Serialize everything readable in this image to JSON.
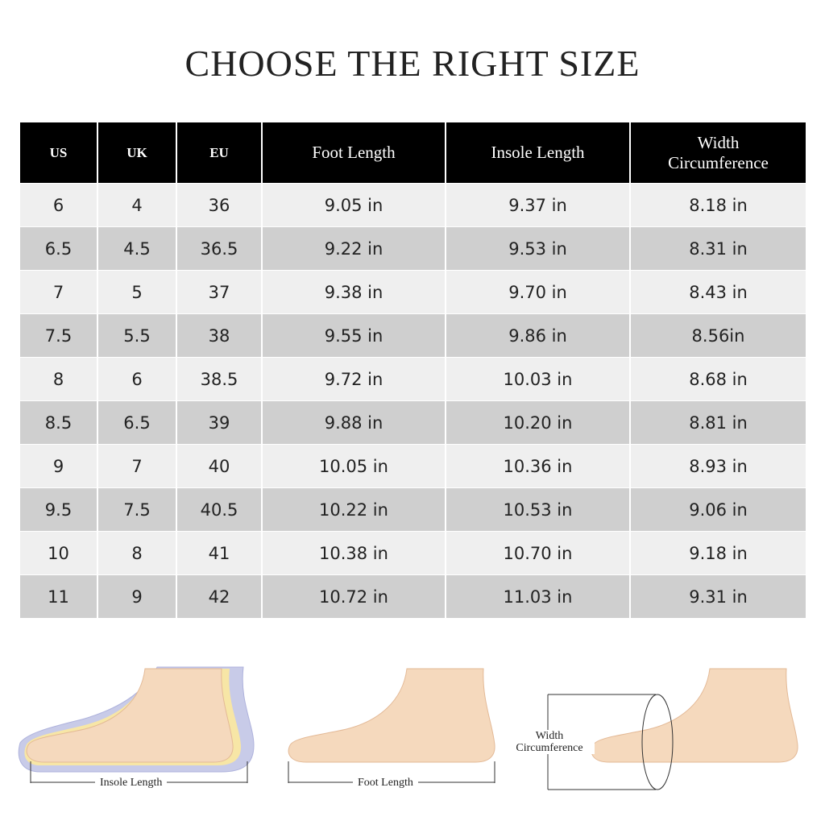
{
  "header": {
    "title": "CHOOSE THE RIGHT SIZE"
  },
  "table": {
    "columns": [
      "US",
      "UK",
      "EU",
      "Foot Length",
      "Insole Length",
      "Width Circumference"
    ],
    "rows": [
      [
        "6",
        "4",
        "36",
        "9.05 in",
        "9.37 in",
        "8.18 in"
      ],
      [
        "6.5",
        "4.5",
        "36.5",
        "9.22 in",
        "9.53 in",
        "8.31 in"
      ],
      [
        "7",
        "5",
        "37",
        "9.38 in",
        "9.70 in",
        "8.43 in"
      ],
      [
        "7.5",
        "5.5",
        "38",
        "9.55 in",
        "9.86 in",
        "8.56in"
      ],
      [
        "8",
        "6",
        "38.5",
        "9.72 in",
        "10.03 in",
        "8.68 in"
      ],
      [
        "8.5",
        "6.5",
        "39",
        "9.88 in",
        "10.20 in",
        "8.81 in"
      ],
      [
        "9",
        "7",
        "40",
        "10.05 in",
        "10.36 in",
        "8.93 in"
      ],
      [
        "9.5",
        "7.5",
        "40.5",
        "10.22 in",
        "10.53 in",
        "9.06 in"
      ],
      [
        "10",
        "8",
        "41",
        "10.38 in",
        "10.70 in",
        "9.18 in"
      ],
      [
        "11",
        "9",
        "42",
        "10.72 in",
        "11.03 in",
        "9.31 in"
      ]
    ]
  },
  "illustrations": {
    "captions": [
      "Insole Length",
      "Foot Length",
      "Width Circumference"
    ]
  }
}
